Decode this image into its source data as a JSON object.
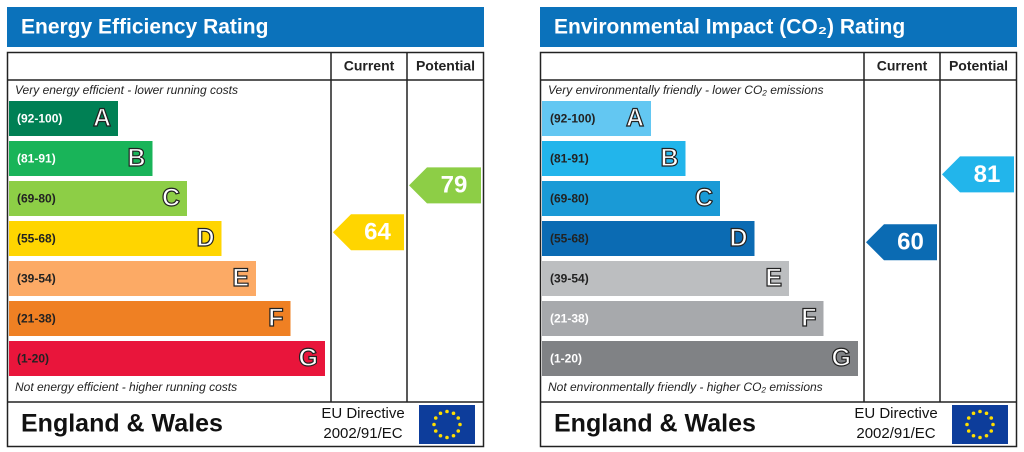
{
  "chart_data": [
    {
      "type": "epc",
      "title": "Energy Efficiency Rating",
      "columns": [
        "Current",
        "Potential"
      ],
      "top_note": "Very energy efficient - lower running costs",
      "bottom_note": "Not energy efficient - higher running costs",
      "bands": [
        {
          "range": "(92-100)",
          "letter": "A",
          "color": "#008054",
          "text_color": "#ffffff"
        },
        {
          "range": "(81-91)",
          "letter": "B",
          "color": "#19b459",
          "text_color": "#ffffff"
        },
        {
          "range": "(69-80)",
          "letter": "C",
          "color": "#8dce46",
          "text_color": "#222222"
        },
        {
          "range": "(55-68)",
          "letter": "D",
          "color": "#ffd500",
          "text_color": "#222222"
        },
        {
          "range": "(39-54)",
          "letter": "E",
          "color": "#fcaa65",
          "text_color": "#222222"
        },
        {
          "range": "(21-38)",
          "letter": "F",
          "color": "#ef8023",
          "text_color": "#222222"
        },
        {
          "range": "(1-20)",
          "letter": "G",
          "color": "#e9153b",
          "text_color": "#222222"
        }
      ],
      "current": 64,
      "current_color": "#ffd500",
      "potential": 79,
      "potential_color": "#8dce46",
      "region": "England & Wales",
      "directive": "EU Directive",
      "directive_code": "2002/91/EC"
    },
    {
      "type": "epc",
      "title": "Environmental Impact (CO₂) Rating",
      "columns": [
        "Current",
        "Potential"
      ],
      "top_note": "Very environmentally friendly - lower CO₂ emissions",
      "bottom_note": "Not environmentally friendly - higher CO₂ emissions",
      "bands": [
        {
          "range": "(92-100)",
          "letter": "A",
          "color": "#63c7f2",
          "text_color": "#222222"
        },
        {
          "range": "(81-91)",
          "letter": "B",
          "color": "#22b5eb",
          "text_color": "#222222"
        },
        {
          "range": "(69-80)",
          "letter": "C",
          "color": "#1a9ad6",
          "text_color": "#222222"
        },
        {
          "range": "(55-68)",
          "letter": "D",
          "color": "#0b6bb3",
          "text_color": "#222222"
        },
        {
          "range": "(39-54)",
          "letter": "E",
          "color": "#bcbec0",
          "text_color": "#222222"
        },
        {
          "range": "(21-38)",
          "letter": "F",
          "color": "#a7a9ac",
          "text_color": "#ffffff"
        },
        {
          "range": "(1-20)",
          "letter": "G",
          "color": "#808285",
          "text_color": "#ffffff"
        }
      ],
      "current": 60,
      "current_color": "#0b6bb3",
      "potential": 81,
      "potential_color": "#22b5eb",
      "region": "England & Wales",
      "directive": "EU Directive",
      "directive_code": "2002/91/EC"
    }
  ]
}
